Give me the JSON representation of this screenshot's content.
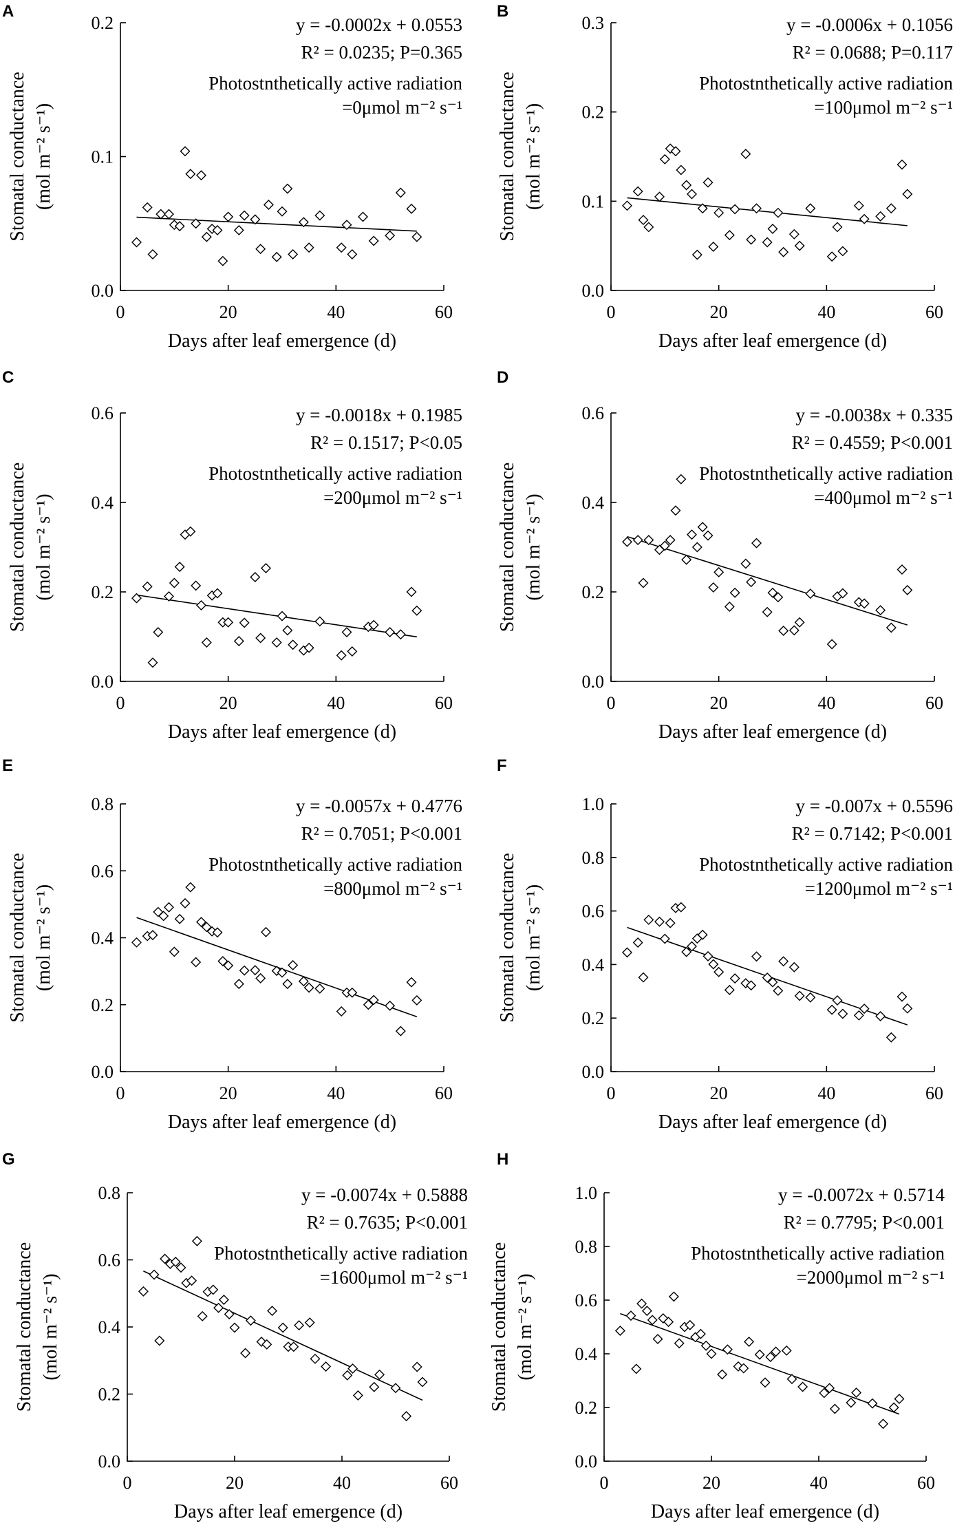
{
  "figure": {
    "panel_count": 8
  },
  "chart_data": [
    {
      "panel": "A",
      "type": "scatter",
      "xlabel": "Days after leaf emergence (d)",
      "ylabel_main": "Stomatal conductance",
      "ylabel_unit": "(mol m⁻² s⁻¹)",
      "xlim": [
        0,
        60
      ],
      "xticks": [
        "0",
        "20",
        "40",
        "60"
      ],
      "ylim": [
        0,
        0.2
      ],
      "yticks": [
        "0.0",
        "0.1",
        "0.2"
      ],
      "equation": "y = -0.0002x + 0.0553",
      "stats": "R² = 0.0235; P=0.365",
      "annotation_line1": "Photostnthetically active radiation",
      "annotation_line2": "=0μmol m⁻² s⁻¹",
      "fit": {
        "slope": -0.0002,
        "intercept": 0.0553,
        "x_range": [
          3,
          55
        ]
      },
      "x": [
        3,
        5,
        6,
        7.5,
        9,
        10,
        11,
        12,
        13,
        14,
        15,
        16,
        17,
        18,
        19,
        20,
        22,
        23,
        25,
        26,
        27.5,
        29,
        30,
        31,
        32,
        34,
        35,
        37,
        41,
        42,
        43,
        45,
        47,
        50,
        52,
        54,
        55
      ],
      "y": [
        0.036,
        0.062,
        0.027,
        0.057,
        0.057,
        0.049,
        0.048,
        0.104,
        0.087,
        0.05,
        0.086,
        0.04,
        0.046,
        0.045,
        0.022,
        0.055,
        0.045,
        0.056,
        0.053,
        0.031,
        0.064,
        0.025,
        0.059,
        0.076,
        0.027,
        0.051,
        0.032,
        0.056,
        0.032,
        0.049,
        0.027,
        0.055,
        0.037,
        0.041,
        0.073,
        0.061,
        0.04
      ]
    },
    {
      "panel": "B",
      "type": "scatter",
      "xlabel": "Days after leaf emergence (d)",
      "ylabel_main": "Stomatal conductance",
      "ylabel_unit": "(mol m⁻² s⁻¹)",
      "xlim": [
        0,
        60
      ],
      "xticks": [
        "0",
        "20",
        "40",
        "60"
      ],
      "ylim": [
        0,
        0.3
      ],
      "yticks": [
        "0.0",
        "0.1",
        "0.2",
        "0.3"
      ],
      "equation": "y = -0.0006x + 0.1056",
      "stats": "R² = 0.0688; P=0.117",
      "annotation_line1": "Photostnthetically active radiation",
      "annotation_line2": "=100μmol m⁻² s⁻¹",
      "fit": {
        "slope": -0.0006,
        "intercept": 0.1056,
        "x_range": [
          3,
          55
        ]
      },
      "x": [
        3,
        5,
        6,
        7,
        9,
        10,
        11,
        12,
        13,
        14,
        15,
        16,
        17,
        18,
        19,
        20,
        22,
        23,
        25,
        26,
        27,
        29,
        30,
        31,
        32,
        34,
        35,
        37,
        41,
        42,
        43,
        46,
        47,
        50,
        52,
        54,
        55
      ],
      "y": [
        0.095,
        0.111,
        0.079,
        0.071,
        0.105,
        0.147,
        0.159,
        0.156,
        0.135,
        0.118,
        0.108,
        0.04,
        0.092,
        0.121,
        0.049,
        0.087,
        0.062,
        0.091,
        0.153,
        0.057,
        0.092,
        0.054,
        0.069,
        0.087,
        0.043,
        0.063,
        0.05,
        0.092,
        0.038,
        0.071,
        0.044,
        0.095,
        0.08,
        0.083,
        0.092,
        0.141,
        0.108
      ]
    },
    {
      "panel": "C",
      "type": "scatter",
      "xlabel": "Days after leaf emergence (d)",
      "ylabel_main": "Stomatal conductance",
      "ylabel_unit": "(mol m⁻² s⁻¹)",
      "xlim": [
        0,
        60
      ],
      "xticks": [
        "0",
        "20",
        "40",
        "60"
      ],
      "ylim": [
        0,
        0.6
      ],
      "yticks": [
        "0.0",
        "0.2",
        "0.4",
        "0.6"
      ],
      "equation": "y = -0.0018x + 0.1985",
      "stats": "R² = 0.1517; P<0.05",
      "annotation_line1": "Photostnthetically active radiation",
      "annotation_line2": "=200μmol m⁻² s⁻¹",
      "fit": {
        "slope": -0.0018,
        "intercept": 0.1985,
        "x_range": [
          3,
          55
        ]
      },
      "x": [
        3,
        5,
        6,
        7,
        9,
        10,
        11,
        12,
        13,
        14,
        15,
        16,
        17,
        18,
        19,
        20,
        22,
        23,
        25,
        26,
        27,
        29,
        30,
        31,
        32,
        34,
        35,
        37,
        41,
        42,
        43,
        46,
        47,
        50,
        52,
        54,
        55
      ],
      "y": [
        0.186,
        0.212,
        0.042,
        0.11,
        0.19,
        0.22,
        0.256,
        0.328,
        0.335,
        0.214,
        0.17,
        0.087,
        0.192,
        0.197,
        0.132,
        0.132,
        0.09,
        0.131,
        0.233,
        0.097,
        0.253,
        0.087,
        0.146,
        0.114,
        0.082,
        0.069,
        0.075,
        0.134,
        0.058,
        0.11,
        0.067,
        0.122,
        0.126,
        0.11,
        0.105,
        0.2,
        0.158
      ]
    },
    {
      "panel": "D",
      "type": "scatter",
      "xlabel": "Days after leaf emergence (d)",
      "ylabel_main": "Stomatal conductance",
      "ylabel_unit": "(mol m⁻² s⁻¹)",
      "xlim": [
        0,
        60
      ],
      "xticks": [
        "0",
        "20",
        "40",
        "60"
      ],
      "ylim": [
        0,
        0.6
      ],
      "yticks": [
        "0.0",
        "0.2",
        "0.4",
        "0.6"
      ],
      "equation": "y = -0.0038x + 0.335",
      "stats": "R² = 0.4559; P<0.001",
      "annotation_line1": "Photostnthetically active radiation",
      "annotation_line2": "=400μmol m⁻² s⁻¹",
      "fit": {
        "slope": -0.0038,
        "intercept": 0.335,
        "x_range": [
          3,
          55
        ]
      },
      "x": [
        3,
        5,
        6,
        7,
        9,
        10,
        11,
        12,
        13,
        14,
        15,
        16,
        17,
        18,
        19,
        20,
        22,
        23,
        25,
        26,
        27,
        29,
        30,
        31,
        32,
        34,
        35,
        37,
        41,
        42,
        43,
        46,
        47,
        50,
        52,
        54,
        55
      ],
      "y": [
        0.312,
        0.316,
        0.22,
        0.316,
        0.294,
        0.303,
        0.316,
        0.382,
        0.452,
        0.272,
        0.328,
        0.3,
        0.345,
        0.326,
        0.21,
        0.244,
        0.167,
        0.198,
        0.263,
        0.222,
        0.309,
        0.155,
        0.198,
        0.188,
        0.113,
        0.114,
        0.132,
        0.196,
        0.083,
        0.19,
        0.197,
        0.177,
        0.174,
        0.159,
        0.12,
        0.25,
        0.204
      ]
    },
    {
      "panel": "E",
      "type": "scatter",
      "xlabel": "Days after leaf emergence (d)",
      "ylabel_main": "Stomatal conductance",
      "ylabel_unit": "(mol m⁻² s⁻¹)",
      "xlim": [
        0,
        60
      ],
      "xticks": [
        "0",
        "20",
        "40",
        "60"
      ],
      "ylim": [
        0,
        0.8
      ],
      "yticks": [
        "0.0",
        "0.2",
        "0.4",
        "0.6",
        "0.8"
      ],
      "equation": "y = -0.0057x + 0.4776",
      "stats": "R² = 0.7051; P<0.001",
      "annotation_line1": "Photostnthetically active radiation",
      "annotation_line2": "=800μmol m⁻² s⁻¹",
      "fit": {
        "slope": -0.0057,
        "intercept": 0.4776,
        "x_range": [
          3,
          55
        ]
      },
      "x": [
        3,
        5,
        6,
        7,
        8,
        9,
        10,
        11,
        12,
        13,
        14,
        15,
        16,
        17,
        18,
        19,
        20,
        22,
        23,
        25,
        26,
        27,
        29,
        30,
        31,
        32,
        34,
        35,
        37,
        41,
        42,
        43,
        46,
        47,
        50,
        52,
        54,
        55
      ],
      "y": [
        0.386,
        0.405,
        0.408,
        0.477,
        0.465,
        0.491,
        0.358,
        0.456,
        0.503,
        0.551,
        0.327,
        0.447,
        0.432,
        0.419,
        0.416,
        0.33,
        0.317,
        0.262,
        0.302,
        0.303,
        0.279,
        0.417,
        0.301,
        0.296,
        0.262,
        0.318,
        0.27,
        0.251,
        0.248,
        0.18,
        0.236,
        0.236,
        0.2,
        0.214,
        0.197,
        0.121,
        0.267,
        0.213
      ]
    },
    {
      "panel": "F",
      "type": "scatter",
      "xlabel": "Days after leaf emergence (d)",
      "ylabel_main": "Stomatal conductance",
      "ylabel_unit": "(mol m⁻² s⁻¹)",
      "xlim": [
        0,
        60
      ],
      "xticks": [
        "0",
        "20",
        "40",
        "60"
      ],
      "ylim": [
        0,
        1.0
      ],
      "yticks": [
        "0.0",
        "0.2",
        "0.4",
        "0.6",
        "0.8",
        "1.0"
      ],
      "equation": "y = -0.007x + 0.5596",
      "stats": "R² = 0.7142; P<0.001",
      "annotation_line1": "Photostnthetically active radiation",
      "annotation_line2": "=1200μmol m⁻² s⁻¹",
      "fit": {
        "slope": -0.007,
        "intercept": 0.5596,
        "x_range": [
          3,
          55
        ]
      },
      "x": [
        3,
        5,
        6,
        7,
        9,
        10,
        11,
        12,
        13,
        14,
        15,
        16,
        17,
        18,
        19,
        20,
        22,
        23,
        25,
        26,
        27,
        29,
        30,
        31,
        32,
        34,
        35,
        37,
        41,
        42,
        43,
        46,
        47,
        50,
        52,
        54,
        55
      ],
      "y": [
        0.445,
        0.482,
        0.352,
        0.567,
        0.56,
        0.496,
        0.555,
        0.611,
        0.614,
        0.447,
        0.468,
        0.497,
        0.511,
        0.431,
        0.401,
        0.372,
        0.305,
        0.348,
        0.33,
        0.322,
        0.43,
        0.351,
        0.334,
        0.302,
        0.412,
        0.39,
        0.283,
        0.277,
        0.231,
        0.266,
        0.216,
        0.21,
        0.235,
        0.207,
        0.128,
        0.28,
        0.236
      ]
    },
    {
      "panel": "G",
      "type": "scatter",
      "xlabel": "Days after leaf emergence (d)",
      "ylabel_main": "Stomatal conductance",
      "ylabel_unit": "(mol m⁻² s⁻¹)",
      "xlim": [
        0,
        60
      ],
      "xticks": [
        "0",
        "20",
        "40",
        "60"
      ],
      "ylim": [
        0,
        0.8
      ],
      "yticks": [
        "0.0",
        "0.2",
        "0.4",
        "0.6",
        "0.8"
      ],
      "equation": "y = -0.0074x + 0.5888",
      "stats": "R² = 0.7635; P<0.001",
      "annotation_line1": "Photostnthetically active radiation",
      "annotation_line2": "=1600μmol m⁻² s⁻¹",
      "fit": {
        "slope": -0.0074,
        "intercept": 0.5888,
        "x_range": [
          3,
          55
        ]
      },
      "x": [
        3,
        5,
        6,
        7,
        8,
        9,
        10,
        11,
        12,
        13,
        14,
        15,
        16,
        17,
        18,
        19,
        20,
        22,
        23,
        25,
        26,
        27,
        29,
        30,
        31,
        32,
        34,
        35,
        37,
        41,
        42,
        43,
        46,
        47,
        50,
        52,
        54,
        55
      ],
      "y": [
        0.506,
        0.556,
        0.359,
        0.603,
        0.588,
        0.594,
        0.577,
        0.531,
        0.538,
        0.656,
        0.432,
        0.505,
        0.511,
        0.457,
        0.481,
        0.438,
        0.398,
        0.322,
        0.419,
        0.356,
        0.348,
        0.448,
        0.398,
        0.341,
        0.341,
        0.405,
        0.413,
        0.305,
        0.282,
        0.256,
        0.276,
        0.196,
        0.221,
        0.258,
        0.218,
        0.134,
        0.281,
        0.236
      ]
    },
    {
      "panel": "H",
      "type": "scatter",
      "xlabel": "Days after leaf emergence (d)",
      "ylabel_main": "Stomatal conductance",
      "ylabel_unit": "(mol m⁻² s⁻¹)",
      "xlim": [
        0,
        60
      ],
      "xticks": [
        "0",
        "20",
        "40",
        "60"
      ],
      "ylim": [
        0,
        1.0
      ],
      "yticks": [
        "0.0",
        "0.2",
        "0.4",
        "0.6",
        "0.8",
        "1.0"
      ],
      "equation": "y = -0.0072x + 0.5714",
      "stats": "R² = 0.7795; P<0.001",
      "annotation_line1": "Photostnthetically active radiation",
      "annotation_line2": "=2000μmol m⁻² s⁻¹",
      "fit": {
        "slope": -0.0072,
        "intercept": 0.5714,
        "x_range": [
          3,
          55
        ]
      },
      "x": [
        3,
        5,
        6,
        7,
        8,
        9,
        10,
        11,
        12,
        13,
        14,
        15,
        16,
        17,
        18,
        19,
        20,
        22,
        23,
        25,
        26,
        27,
        29,
        30,
        31,
        32,
        34,
        35,
        37,
        41,
        42,
        43,
        46,
        47,
        50,
        52,
        54,
        55
      ],
      "y": [
        0.486,
        0.542,
        0.344,
        0.587,
        0.56,
        0.526,
        0.455,
        0.532,
        0.519,
        0.613,
        0.439,
        0.5,
        0.507,
        0.462,
        0.474,
        0.43,
        0.4,
        0.323,
        0.416,
        0.353,
        0.346,
        0.445,
        0.397,
        0.293,
        0.388,
        0.408,
        0.412,
        0.306,
        0.277,
        0.254,
        0.272,
        0.195,
        0.218,
        0.255,
        0.215,
        0.139,
        0.2,
        0.232
      ]
    }
  ]
}
